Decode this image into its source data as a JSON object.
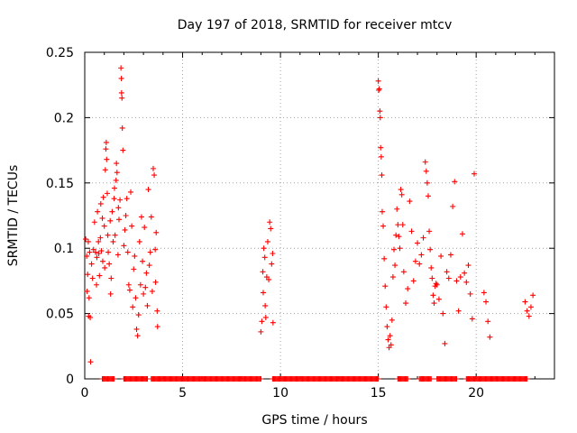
{
  "chart_data": {
    "type": "scatter",
    "title": "Day 197 of 2018, SRMTID for receiver mtcv",
    "xlabel": "GPS time / hours",
    "ylabel": "SRMTID / TECUs",
    "xlim": [
      0,
      24
    ],
    "ylim": [
      0,
      0.25
    ],
    "x_ticks": [
      0,
      5,
      10,
      15,
      20
    ],
    "y_ticks": [
      0,
      0.05,
      0.1,
      0.15,
      0.2,
      0.25
    ],
    "x_tick_labels": [
      "0",
      "5",
      "10",
      "15",
      "20"
    ],
    "y_tick_labels": [
      "0",
      "0.05",
      "0.1",
      "0.15",
      "0.2",
      "0.25"
    ],
    "grid": true,
    "marker": "+",
    "series": [
      {
        "name": "SRMTID",
        "color": "#ff0000",
        "points": [
          [
            0.05,
            0.107
          ],
          [
            0.1,
            0.094
          ],
          [
            0.12,
            0.067
          ],
          [
            0.15,
            0.08
          ],
          [
            0.18,
            0.105
          ],
          [
            0.2,
            0.048
          ],
          [
            0.22,
            0.062
          ],
          [
            0.25,
            0.097
          ],
          [
            0.28,
            0.047
          ],
          [
            0.3,
            0.013
          ],
          [
            0.35,
            0.088
          ],
          [
            0.4,
            0.077
          ],
          [
            0.45,
            0.099
          ],
          [
            0.5,
            0.12
          ],
          [
            0.55,
            0.097
          ],
          [
            0.6,
            0.072
          ],
          [
            0.62,
            0.093
          ],
          [
            0.65,
            0.128
          ],
          [
            0.7,
            0.105
          ],
          [
            0.72,
            0.096
          ],
          [
            0.75,
            0.079
          ],
          [
            0.8,
            0.108
          ],
          [
            0.82,
            0.134
          ],
          [
            0.85,
            0.098
          ],
          [
            0.9,
            0.123
          ],
          [
            0.92,
            0.09
          ],
          [
            0.95,
            0.139
          ],
          [
            1.0,
            0.117
          ],
          [
            1.02,
            0.085
          ],
          [
            1.05,
            0.16
          ],
          [
            1.08,
            0.176
          ],
          [
            1.1,
            0.181
          ],
          [
            1.12,
            0.168
          ],
          [
            1.15,
            0.142
          ],
          [
            1.18,
            0.11
          ],
          [
            1.2,
            0.097
          ],
          [
            1.25,
            0.088
          ],
          [
            1.3,
            0.121
          ],
          [
            1.32,
            0.065
          ],
          [
            1.35,
            0.077
          ],
          [
            1.4,
            0.128
          ],
          [
            1.45,
            0.105
          ],
          [
            1.5,
            0.138
          ],
          [
            1.52,
            0.146
          ],
          [
            1.55,
            0.11
          ],
          [
            1.6,
            0.152
          ],
          [
            1.62,
            0.165
          ],
          [
            1.65,
            0.158
          ],
          [
            1.7,
            0.095
          ],
          [
            1.72,
            0.131
          ],
          [
            1.75,
            0.122
          ],
          [
            1.8,
            0.137
          ],
          [
            1.85,
            0.238
          ],
          [
            1.87,
            0.23
          ],
          [
            1.88,
            0.219
          ],
          [
            1.9,
            0.215
          ],
          [
            1.92,
            0.192
          ],
          [
            1.95,
            0.175
          ],
          [
            2.0,
            0.102
          ],
          [
            2.05,
            0.114
          ],
          [
            2.1,
            0.125
          ],
          [
            2.15,
            0.138
          ],
          [
            2.2,
            0.097
          ],
          [
            2.25,
            0.072
          ],
          [
            2.3,
            0.068
          ],
          [
            2.35,
            0.143
          ],
          [
            2.4,
            0.117
          ],
          [
            2.45,
            0.055
          ],
          [
            2.5,
            0.084
          ],
          [
            2.55,
            0.094
          ],
          [
            2.6,
            0.062
          ],
          [
            2.65,
            0.038
          ],
          [
            2.7,
            0.033
          ],
          [
            2.75,
            0.049
          ],
          [
            2.8,
            0.105
          ],
          [
            2.85,
            0.072
          ],
          [
            2.9,
            0.124
          ],
          [
            2.95,
            0.09
          ],
          [
            3.0,
            0.065
          ],
          [
            3.05,
            0.116
          ],
          [
            3.1,
            0.07
          ],
          [
            3.15,
            0.081
          ],
          [
            3.2,
            0.056
          ],
          [
            3.25,
            0.145
          ],
          [
            3.3,
            0.087
          ],
          [
            3.35,
            0.097
          ],
          [
            3.4,
            0.124
          ],
          [
            3.45,
            0.067
          ],
          [
            3.5,
            0.161
          ],
          [
            3.55,
            0.156
          ],
          [
            3.6,
            0.099
          ],
          [
            3.62,
            0.074
          ],
          [
            3.65,
            0.112
          ],
          [
            3.7,
            0.052
          ],
          [
            3.72,
            0.04
          ],
          [
            9.0,
            0.036
          ],
          [
            9.05,
            0.044
          ],
          [
            9.1,
            0.082
          ],
          [
            9.12,
            0.066
          ],
          [
            9.15,
            0.1
          ],
          [
            9.2,
            0.093
          ],
          [
            9.22,
            0.056
          ],
          [
            9.25,
            0.047
          ],
          [
            9.3,
            0.078
          ],
          [
            9.35,
            0.105
          ],
          [
            9.4,
            0.076
          ],
          [
            9.45,
            0.12
          ],
          [
            9.5,
            0.115
          ],
          [
            9.55,
            0.088
          ],
          [
            9.6,
            0.096
          ],
          [
            9.62,
            0.043
          ],
          [
            15.0,
            0.228
          ],
          [
            15.02,
            0.221
          ],
          [
            15.05,
            0.222
          ],
          [
            15.08,
            0.205
          ],
          [
            15.1,
            0.2
          ],
          [
            15.12,
            0.177
          ],
          [
            15.15,
            0.17
          ],
          [
            15.18,
            0.156
          ],
          [
            15.2,
            0.128
          ],
          [
            15.25,
            0.117
          ],
          [
            15.3,
            0.092
          ],
          [
            15.35,
            0.071
          ],
          [
            15.4,
            0.055
          ],
          [
            15.45,
            0.04
          ],
          [
            15.5,
            0.03
          ],
          [
            15.55,
            0.024
          ],
          [
            15.6,
            0.033
          ],
          [
            15.65,
            0.026
          ],
          [
            15.7,
            0.045
          ],
          [
            15.75,
            0.078
          ],
          [
            15.8,
            0.099
          ],
          [
            15.85,
            0.087
          ],
          [
            15.9,
            0.11
          ],
          [
            15.95,
            0.13
          ],
          [
            16.0,
            0.118
          ],
          [
            16.05,
            0.109
          ],
          [
            16.1,
            0.1
          ],
          [
            16.15,
            0.145
          ],
          [
            16.2,
            0.141
          ],
          [
            16.25,
            0.118
          ],
          [
            16.3,
            0.082
          ],
          [
            16.4,
            0.058
          ],
          [
            16.5,
            0.069
          ],
          [
            16.6,
            0.136
          ],
          [
            16.7,
            0.113
          ],
          [
            16.8,
            0.075
          ],
          [
            16.9,
            0.09
          ],
          [
            17.0,
            0.104
          ],
          [
            17.1,
            0.088
          ],
          [
            17.2,
            0.095
          ],
          [
            17.3,
            0.108
          ],
          [
            17.4,
            0.166
          ],
          [
            17.45,
            0.159
          ],
          [
            17.5,
            0.15
          ],
          [
            17.55,
            0.14
          ],
          [
            17.6,
            0.113
          ],
          [
            17.65,
            0.099
          ],
          [
            17.7,
            0.085
          ],
          [
            17.75,
            0.077
          ],
          [
            17.8,
            0.064
          ],
          [
            17.85,
            0.058
          ],
          [
            17.9,
            0.071
          ],
          [
            17.95,
            0.073
          ],
          [
            18.0,
            0.072
          ],
          [
            18.1,
            0.061
          ],
          [
            18.2,
            0.094
          ],
          [
            18.3,
            0.05
          ],
          [
            18.4,
            0.027
          ],
          [
            18.5,
            0.082
          ],
          [
            18.6,
            0.077
          ],
          [
            18.7,
            0.095
          ],
          [
            18.8,
            0.132
          ],
          [
            18.9,
            0.151
          ],
          [
            19.0,
            0.075
          ],
          [
            19.1,
            0.052
          ],
          [
            19.2,
            0.078
          ],
          [
            19.3,
            0.111
          ],
          [
            19.4,
            0.081
          ],
          [
            19.5,
            0.074
          ],
          [
            19.6,
            0.087
          ],
          [
            19.7,
            0.065
          ],
          [
            19.8,
            0.046
          ],
          [
            19.9,
            0.157
          ],
          [
            20.4,
            0.066
          ],
          [
            20.5,
            0.059
          ],
          [
            20.6,
            0.044
          ],
          [
            20.7,
            0.032
          ],
          [
            22.5,
            0.059
          ],
          [
            22.6,
            0.052
          ],
          [
            22.7,
            0.048
          ],
          [
            22.8,
            0.055
          ],
          [
            22.9,
            0.064
          ]
        ],
        "zero_ranges": [
          [
            0.9,
            1.5
          ],
          [
            2.0,
            3.2
          ],
          [
            3.4,
            9.0
          ],
          [
            9.6,
            15.0
          ],
          [
            16.0,
            16.5
          ],
          [
            17.1,
            17.7
          ],
          [
            18.0,
            19.0
          ],
          [
            19.5,
            22.6
          ]
        ]
      }
    ]
  }
}
